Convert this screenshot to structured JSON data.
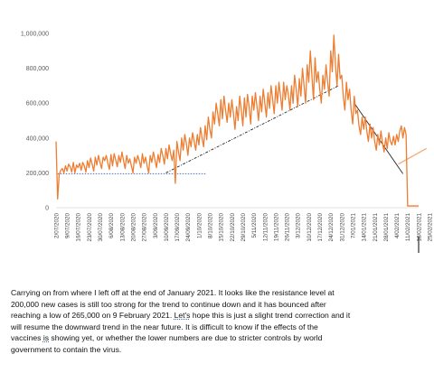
{
  "chart_data": {
    "type": "line",
    "title": "",
    "xlabel": "",
    "ylabel": "",
    "ylim": [
      0,
      1000000
    ],
    "yticks": [
      0,
      200000,
      400000,
      600000,
      800000,
      1000000
    ],
    "ytick_labels": [
      "0",
      "200,000",
      "400,000",
      "600,000",
      "800,000",
      "1,000,000"
    ],
    "grid": "none",
    "legend": "none",
    "start_date": "2020-07-02",
    "end_date": "2021-03-08",
    "x_tick_labels": [
      "2/07/2020",
      "9/07/2020",
      "16/07/2020",
      "23/07/2020",
      "30/07/2020",
      "6/08/2020",
      "13/08/2020",
      "20/08/2020",
      "27/08/2020",
      "3/09/2020",
      "10/09/2020",
      "17/09/2020",
      "24/09/2020",
      "1/10/2020",
      "8/10/2020",
      "15/10/2020",
      "22/10/2020",
      "29/10/2020",
      "5/11/2020",
      "12/11/2020",
      "19/11/2020",
      "26/11/2020",
      "3/12/2020",
      "10/12/2020",
      "17/12/2020",
      "24/12/2020",
      "31/12/2020",
      "7/01/2021",
      "14/01/2021",
      "21/01/2021",
      "28/01/2021",
      "4/02/2021",
      "11/02/2021",
      "18/02/2021",
      "25/02/2021",
      "4/03/2021"
    ],
    "series": [
      {
        "name": "",
        "color": "#ed7d31",
        "values": [
          380000,
          50000,
          190000,
          215000,
          225000,
          200000,
          240000,
          210000,
          250000,
          235000,
          205000,
          260000,
          200000,
          245000,
          230000,
          255000,
          215000,
          260000,
          240000,
          205000,
          270000,
          230000,
          285000,
          250000,
          210000,
          290000,
          245000,
          300000,
          260000,
          225000,
          290000,
          270000,
          300000,
          255000,
          220000,
          305000,
          240000,
          310000,
          275000,
          235000,
          300000,
          260000,
          320000,
          270000,
          225000,
          300000,
          255000,
          280000,
          240000,
          200000,
          290000,
          255000,
          300000,
          270000,
          230000,
          310000,
          255000,
          290000,
          240000,
          200000,
          300000,
          260000,
          320000,
          275000,
          230000,
          305000,
          260000,
          340000,
          300000,
          250000,
          340000,
          280000,
          360000,
          310000,
          270000,
          330000,
          140000,
          380000,
          320000,
          270000,
          400000,
          330000,
          420000,
          370000,
          300000,
          400000,
          350000,
          430000,
          380000,
          330000,
          420000,
          360000,
          460000,
          400000,
          350000,
          470000,
          390000,
          520000,
          450000,
          400000,
          550000,
          480000,
          600000,
          540000,
          470000,
          620000,
          510000,
          640000,
          560000,
          490000,
          600000,
          520000,
          620000,
          540000,
          450000,
          580000,
          500000,
          640000,
          560000,
          470000,
          630000,
          520000,
          650000,
          580000,
          480000,
          640000,
          560000,
          660000,
          580000,
          500000,
          640000,
          550000,
          680000,
          600000,
          520000,
          660000,
          570000,
          700000,
          620000,
          540000,
          700000,
          600000,
          720000,
          640000,
          560000,
          720000,
          620000,
          700000,
          650000,
          560000,
          700000,
          600000,
          760000,
          680000,
          580000,
          740000,
          640000,
          800000,
          700000,
          600000,
          820000,
          720000,
          900000,
          760000,
          620000,
          860000,
          720000,
          780000,
          680000,
          600000,
          760000,
          680000,
          820000,
          720000,
          640000,
          900000,
          780000,
          990000,
          820000,
          700000,
          880000,
          740000,
          760000,
          640000,
          560000,
          720000,
          620000,
          680000,
          560000,
          480000,
          640000,
          540000,
          560000,
          470000,
          420000,
          520000,
          450000,
          520000,
          440000,
          380000,
          480000,
          400000,
          460000,
          380000,
          330000,
          420000,
          360000,
          440000,
          370000,
          320000,
          400000,
          340000,
          430000,
          380000,
          360000,
          410000,
          360000,
          420000,
          380000,
          440000,
          470000,
          400000,
          460000,
          420000,
          10000,
          10000,
          10000,
          10000,
          10000,
          10000,
          10000,
          10000
        ]
      }
    ],
    "trendlines": [
      {
        "style": "dotted",
        "color": "#4472c4",
        "from": [
          1,
          195000
        ],
        "to": [
          96,
          195000
        ]
      },
      {
        "style": "dashdot",
        "color": "#262626",
        "from": [
          70,
          200000
        ],
        "to": [
          180,
          700000
        ]
      },
      {
        "style": "solid",
        "color": "#262626",
        "from": [
          190,
          600000
        ],
        "to": [
          221,
          195000
        ]
      },
      {
        "style": "solid",
        "color": "#f4b183",
        "from": [
          218,
          250000
        ],
        "to": [
          236,
          340000
        ]
      }
    ]
  },
  "caption": {
    "p1": "Carrying on from where I left off at the end of January 2021. It looks like the resistance level at",
    "p2": "200,000 new cases is still too strong for the trend to continue down and it has bounced after",
    "p3_a": "reaching a low of 265,000 on 9 February 2021. ",
    "p3_b": "Let's",
    "p3_c": " hope this is just a slight trend correction and it",
    "p4": "will resume the downward trend in the near future. It is difficult to know if the effects of the",
    "p5_a": "vaccines ",
    "p5_b": "is",
    "p5_c": " showing yet, or whether the lower numbers are due to stricter controls by world",
    "p6": "government to contain the virus."
  }
}
